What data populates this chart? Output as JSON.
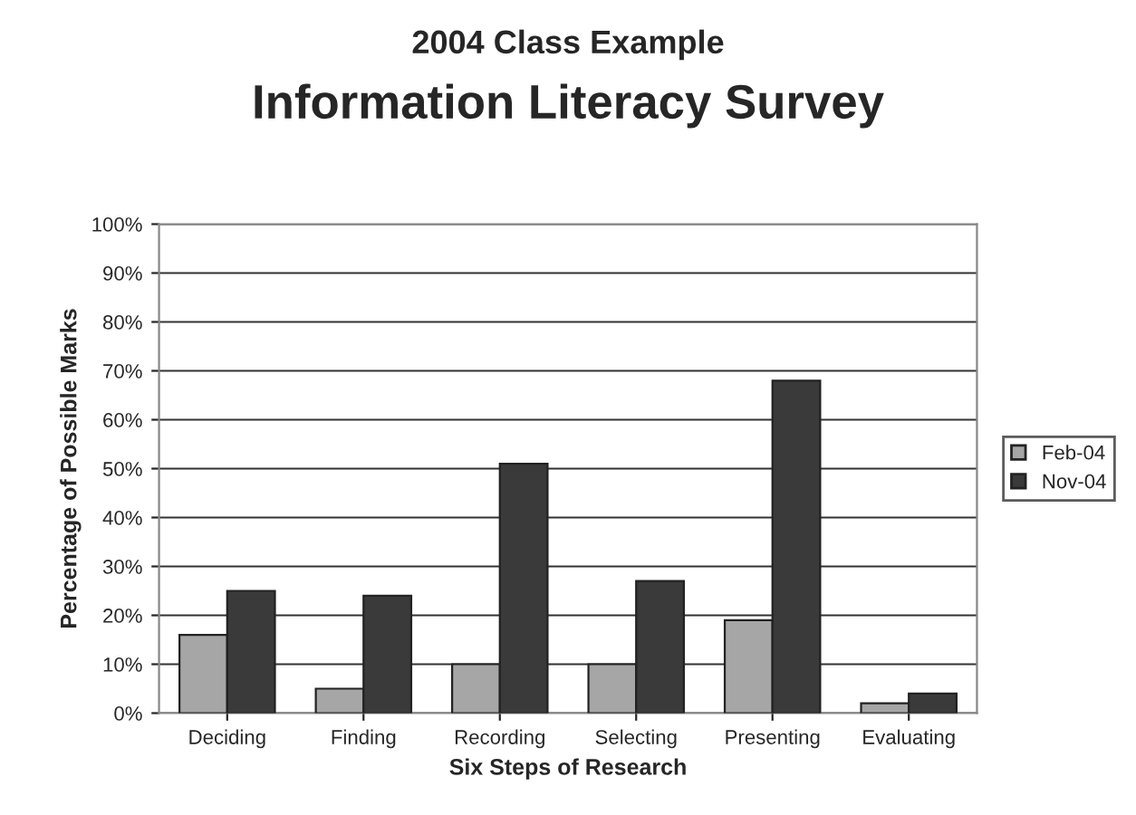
{
  "chart_data": {
    "type": "bar",
    "title": "2004 Class Example",
    "subtitle": "Information Literacy Survey",
    "xlabel": "Six Steps of Research",
    "ylabel": "Percentage of Possible Marks",
    "categories": [
      "Deciding",
      "Finding",
      "Recording",
      "Selecting",
      "Presenting",
      "Evaluating"
    ],
    "series": [
      {
        "name": "Feb-04",
        "color": "#a6a6a6",
        "values": [
          16,
          5,
          10,
          10,
          19,
          2
        ]
      },
      {
        "name": "Nov-04",
        "color": "#3a3a3a",
        "values": [
          25,
          24,
          51,
          27,
          68,
          4
        ]
      }
    ],
    "ylim": [
      0,
      100
    ],
    "yticks": [
      {
        "value": 0,
        "label": "0%"
      },
      {
        "value": 10,
        "label": "10%"
      },
      {
        "value": 20,
        "label": "20%"
      },
      {
        "value": 30,
        "label": "30%"
      },
      {
        "value": 40,
        "label": "40%"
      },
      {
        "value": 50,
        "label": "50%"
      },
      {
        "value": 60,
        "label": "60%"
      },
      {
        "value": 70,
        "label": "70%"
      },
      {
        "value": 80,
        "label": "80%"
      },
      {
        "value": 90,
        "label": "90%"
      },
      {
        "value": 100,
        "label": "100%"
      }
    ],
    "grid": "y",
    "legend": "right"
  }
}
